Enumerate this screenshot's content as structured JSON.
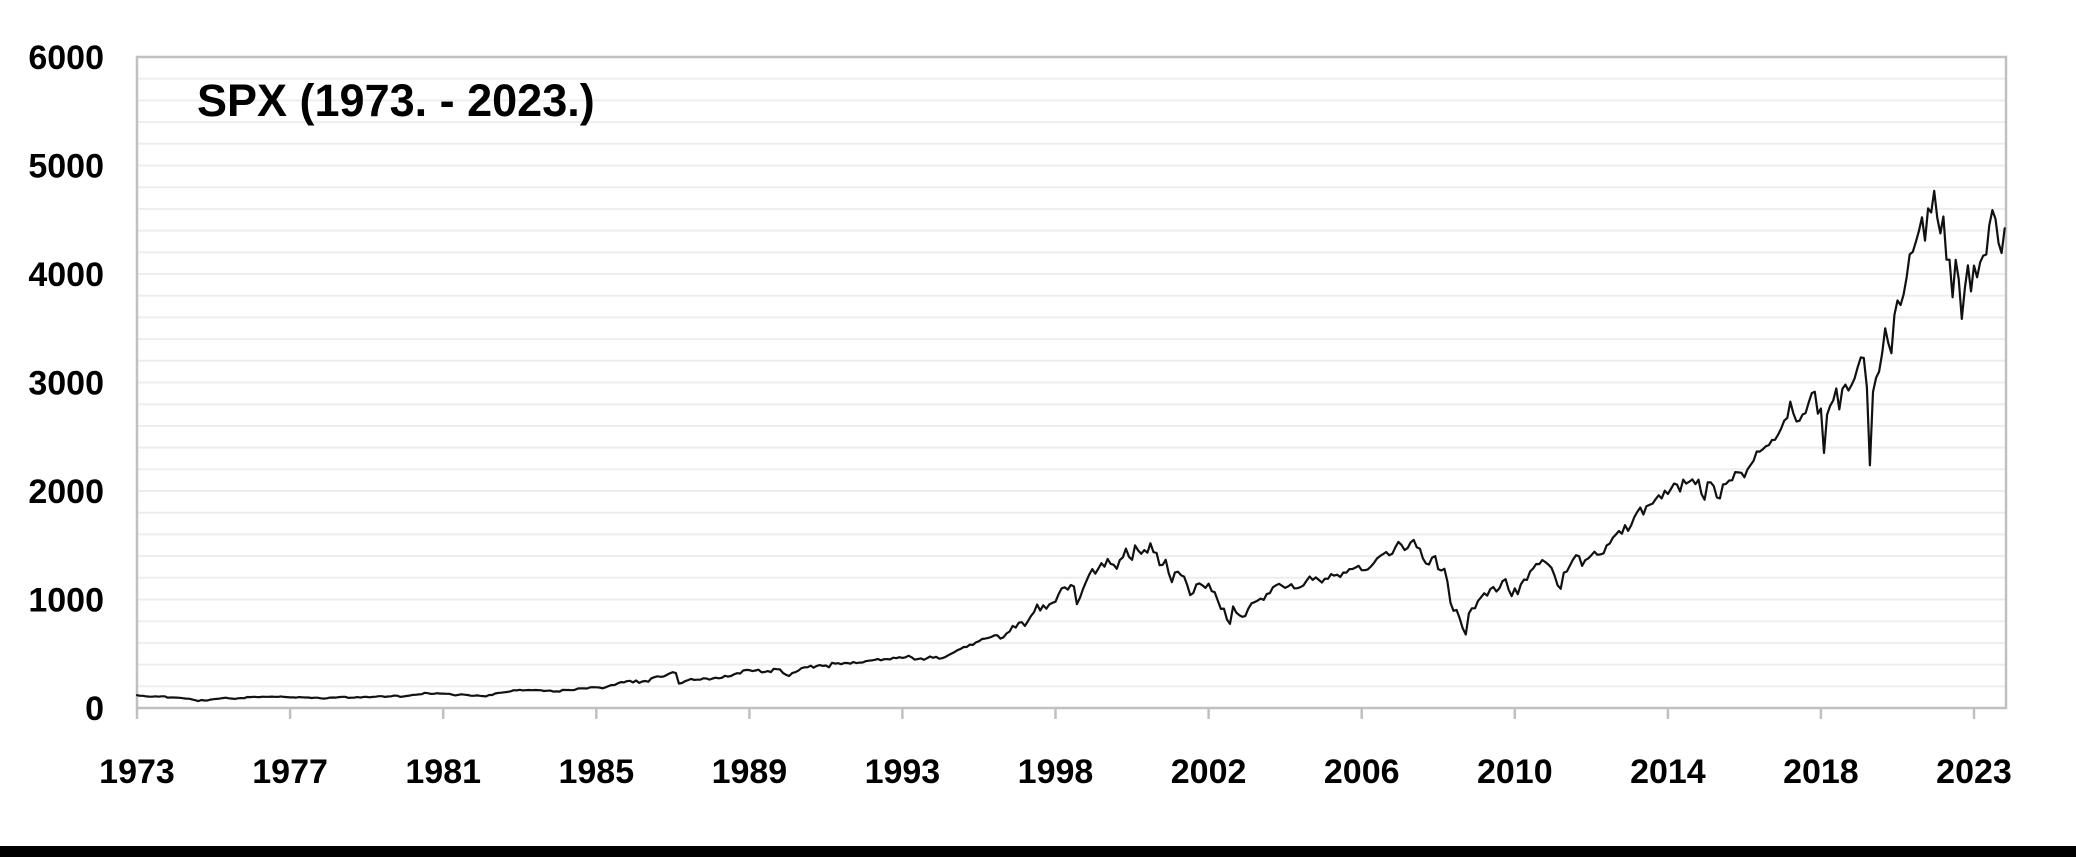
{
  "chart_data": {
    "type": "line",
    "title": "SPX (1973. - 2023.)",
    "legend": "none",
    "grid": "horizontal minor gridlines every 200, light gray; plot area outlined",
    "y_axis": {
      "min": 0,
      "max": 6000,
      "major_unit": 1000,
      "minor_unit": 200,
      "tick_labels": [
        "0",
        "1000",
        "2000",
        "3000",
        "4000",
        "5000",
        "6000"
      ]
    },
    "x_axis": {
      "start": 1973.0,
      "end": 2023.87,
      "tick_interval_months": 50,
      "tick_labels": [
        {
          "t": 1973.0,
          "label": "1973"
        },
        {
          "t": 1977.167,
          "label": "1977"
        },
        {
          "t": 1981.333,
          "label": "1981"
        },
        {
          "t": 1985.5,
          "label": "1985"
        },
        {
          "t": 1989.667,
          "label": "1989"
        },
        {
          "t": 1993.833,
          "label": "1993"
        },
        {
          "t": 1998.0,
          "label": "1998"
        },
        {
          "t": 2002.167,
          "label": "2002"
        },
        {
          "t": 2006.333,
          "label": "2006"
        },
        {
          "t": 2010.5,
          "label": "2010"
        },
        {
          "t": 2014.667,
          "label": "2014"
        },
        {
          "t": 2018.833,
          "label": "2018"
        },
        {
          "t": 2023.0,
          "label": "2023"
        }
      ]
    },
    "series": [
      {
        "name": "SPX",
        "color": "#111111",
        "monthly_closes": {
          "1973": [
            118,
            112,
            112,
            107,
            105,
            104,
            108,
            104,
            108,
            108,
            96,
            97
          ],
          "1974": [
            97,
            96,
            94,
            90,
            87,
            86,
            79,
            72,
            64,
            74,
            69,
            69
          ],
          "1975": [
            77,
            81,
            84,
            87,
            91,
            95,
            89,
            87,
            84,
            89,
            91,
            90
          ],
          "1976": [
            101,
            100,
            103,
            101,
            100,
            104,
            103,
            103,
            105,
            103,
            102,
            107
          ],
          "1977": [
            102,
            100,
            98,
            98,
            96,
            100,
            99,
            97,
            97,
            92,
            95,
            95
          ],
          "1978": [
            89,
            87,
            89,
            96,
            97,
            96,
            100,
            103,
            103,
            93,
            95,
            96
          ],
          "1979": [
            100,
            96,
            102,
            102,
            99,
            102,
            104,
            109,
            109,
            102,
            106,
            108
          ],
          "1980": [
            114,
            113,
            102,
            106,
            111,
            114,
            121,
            122,
            125,
            127,
            140,
            136
          ],
          "1981": [
            130,
            131,
            136,
            133,
            133,
            131,
            131,
            123,
            116,
            122,
            126,
            123
          ],
          "1982": [
            120,
            113,
            112,
            116,
            112,
            110,
            107,
            120,
            120,
            134,
            139,
            141
          ],
          "1983": [
            145,
            148,
            153,
            164,
            162,
            168,
            162,
            164,
            166,
            164,
            166,
            165
          ],
          "1984": [
            163,
            157,
            159,
            160,
            151,
            153,
            151,
            167,
            166,
            166,
            164,
            167
          ],
          "1985": [
            180,
            181,
            181,
            180,
            190,
            192,
            191,
            189,
            182,
            190,
            202,
            211
          ],
          "1986": [
            212,
            227,
            239,
            236,
            247,
            251,
            236,
            253,
            231,
            244,
            249,
            242
          ],
          "1987": [
            274,
            284,
            292,
            288,
            290,
            304,
            319,
            330,
            322,
            225,
            230,
            247
          ],
          "1988": [
            257,
            268,
            259,
            261,
            262,
            274,
            272,
            262,
            272,
            279,
            274,
            278
          ],
          "1989": [
            297,
            289,
            295,
            310,
            321,
            318,
            346,
            351,
            349,
            340,
            346,
            353
          ],
          "1990": [
            329,
            332,
            340,
            331,
            361,
            358,
            356,
            323,
            306,
            295,
            322,
            330
          ],
          "1991": [
            344,
            367,
            375,
            375,
            390,
            371,
            388,
            395,
            388,
            392,
            375,
            417
          ],
          "1992": [
            409,
            413,
            404,
            415,
            415,
            408,
            424,
            414,
            418,
            419,
            431,
            436
          ],
          "1993": [
            439,
            444,
            452,
            440,
            450,
            451,
            448,
            464,
            459,
            468,
            462,
            467
          ],
          "1994": [
            482,
            467,
            446,
            451,
            457,
            444,
            458,
            475,
            463,
            472,
            454,
            459
          ],
          "1995": [
            470,
            487,
            501,
            515,
            533,
            545,
            562,
            562,
            584,
            582,
            605,
            616
          ],
          "1996": [
            636,
            640,
            646,
            654,
            669,
            671,
            640,
            652,
            687,
            705,
            757,
            741
          ],
          "1997": [
            786,
            791,
            757,
            801,
            848,
            885,
            954,
            899,
            947,
            915,
            955,
            970
          ],
          "1998": [
            980,
            1049,
            1102,
            1112,
            1091,
            1134,
            1121,
            957,
            1017,
            1099,
            1164,
            1229
          ],
          "1999": [
            1280,
            1238,
            1286,
            1335,
            1302,
            1373,
            1329,
            1320,
            1283,
            1363,
            1389,
            1469
          ],
          "2000": [
            1394,
            1366,
            1499,
            1452,
            1421,
            1455,
            1431,
            1518,
            1437,
            1429,
            1315,
            1320
          ],
          "2001": [
            1366,
            1240,
            1160,
            1249,
            1256,
            1224,
            1211,
            1134,
            1041,
            1060,
            1139,
            1148
          ],
          "2002": [
            1130,
            1107,
            1147,
            1077,
            1067,
            990,
            912,
            916,
            815,
            776,
            936,
            880
          ],
          "2003": [
            856,
            841,
            848,
            917,
            964,
            975,
            990,
            1008,
            996,
            1051,
            1058,
            1112
          ],
          "2004": [
            1131,
            1145,
            1126,
            1107,
            1121,
            1141,
            1102,
            1104,
            1114,
            1130,
            1174,
            1212
          ],
          "2005": [
            1181,
            1204,
            1181,
            1157,
            1192,
            1191,
            1234,
            1220,
            1229,
            1207,
            1249,
            1248
          ],
          "2006": [
            1280,
            1281,
            1295,
            1311,
            1270,
            1270,
            1277,
            1304,
            1336,
            1378,
            1401,
            1418
          ],
          "2007": [
            1438,
            1407,
            1421,
            1482,
            1531,
            1503,
            1455,
            1474,
            1527,
            1549,
            1481,
            1468
          ],
          "2008": [
            1379,
            1331,
            1323,
            1386,
            1400,
            1280,
            1267,
            1283,
            1166,
            969,
            896,
            903
          ],
          "2009": [
            826,
            735,
            677,
            873,
            919,
            919,
            987,
            1021,
            1057,
            1036,
            1096,
            1115
          ],
          "2010": [
            1074,
            1104,
            1169,
            1187,
            1089,
            1031,
            1102,
            1049,
            1141,
            1183,
            1181,
            1258
          ],
          "2011": [
            1286,
            1327,
            1326,
            1364,
            1345,
            1321,
            1292,
            1219,
            1131,
            1099,
            1247,
            1258
          ],
          "2012": [
            1312,
            1366,
            1408,
            1398,
            1310,
            1362,
            1379,
            1407,
            1441,
            1412,
            1416,
            1426
          ],
          "2013": [
            1498,
            1515,
            1569,
            1598,
            1631,
            1606,
            1686,
            1633,
            1682,
            1757,
            1806,
            1848
          ],
          "2014": [
            1783,
            1859,
            1872,
            1884,
            1924,
            1960,
            1931,
            2003,
            1972,
            2018,
            2068,
            2059
          ],
          "2015": [
            1995,
            2105,
            2068,
            2086,
            2107,
            2063,
            2104,
            1972,
            1920,
            2079,
            2080,
            2044
          ],
          "2016": [
            1940,
            1932,
            2060,
            2065,
            2097,
            2099,
            2174,
            2171,
            2168,
            2126,
            2199,
            2239
          ],
          "2017": [
            2279,
            2364,
            2363,
            2384,
            2412,
            2423,
            2470,
            2472,
            2519,
            2575,
            2648,
            2674
          ],
          "2018": [
            2824,
            2714,
            2641,
            2648,
            2705,
            2718,
            2816,
            2902,
            2914,
            2712,
            2760,
            2351
          ],
          "2019": [
            2704,
            2784,
            2834,
            2946,
            2752,
            2942,
            2980,
            2926,
            2977,
            3038,
            3141,
            3231
          ],
          "2020": [
            3226,
            2954,
            2237,
            2912,
            3044,
            3100,
            3271,
            3500,
            3363,
            3270,
            3622,
            3756
          ],
          "2021": [
            3714,
            3811,
            3973,
            4181,
            4204,
            4298,
            4395,
            4523,
            4308,
            4605,
            4567,
            4766
          ],
          "2022": [
            4516,
            4374,
            4530,
            4132,
            4132,
            3785,
            4130,
            3955,
            3586,
            3872,
            4080,
            3840
          ],
          "2023": [
            4077,
            3970,
            4109,
            4169,
            4180,
            4450,
            4589,
            4508,
            4288,
            4194,
            4420
          ]
        }
      }
    ]
  },
  "colors": {
    "background": "#ffffff",
    "plot_border": "#c0c0c0",
    "gridline": "#ededed",
    "series_line": "#111111",
    "axis_text": "#000000",
    "bottom_bar": "#000000"
  }
}
